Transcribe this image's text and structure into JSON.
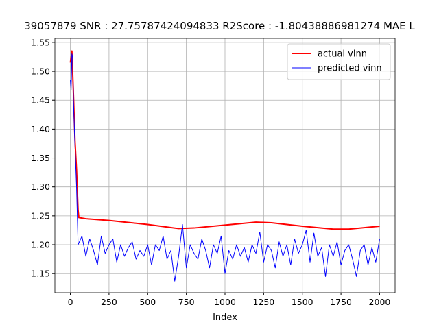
{
  "chart_data": {
    "type": "line",
    "title": "39057879  SNR : 27.75787424094833 R2Score : -1.80438886981274 MAE L",
    "xlabel": "Index",
    "xlim": [
      -100,
      2100
    ],
    "xticks": [
      0,
      250,
      500,
      750,
      1000,
      1250,
      1500,
      1750,
      2000
    ],
    "ylim": [
      1.117,
      1.557
    ],
    "yticks": [
      1.15,
      {
        "value": 1.2,
        "label": "1.20"
      },
      1.25,
      {
        "value": 1.3,
        "label": "1.30"
      },
      1.35,
      {
        "value": 1.4,
        "label": "1.40"
      },
      1.45,
      {
        "value": 1.5,
        "label": "1.50"
      },
      1.55
    ],
    "grid": true,
    "legend": "upper right",
    "series": [
      {
        "name": "actual vinn",
        "color": "#ff0000",
        "width": 2,
        "x": [
          0,
          10,
          20,
          30,
          40,
          50,
          55,
          100,
          250,
          500,
          700,
          800,
          1000,
          1200,
          1300,
          1500,
          1700,
          1800,
          2000
        ],
        "values": [
          1.515,
          1.535,
          1.46,
          1.38,
          1.33,
          1.26,
          1.247,
          1.245,
          1.242,
          1.235,
          1.228,
          1.229,
          1.234,
          1.239,
          1.238,
          1.232,
          1.227,
          1.227,
          1.232
        ]
      },
      {
        "name": "predicted vinn",
        "color": "#0000ff",
        "width": 1,
        "x": [
          0,
          5,
          10,
          15,
          20,
          30,
          40,
          50,
          75,
          100,
          125,
          150,
          175,
          200,
          225,
          250,
          275,
          300,
          325,
          350,
          375,
          400,
          425,
          450,
          475,
          500,
          525,
          550,
          575,
          600,
          625,
          650,
          675,
          700,
          725,
          750,
          775,
          800,
          825,
          850,
          875,
          900,
          925,
          950,
          975,
          1000,
          1025,
          1050,
          1075,
          1100,
          1125,
          1150,
          1175,
          1200,
          1225,
          1250,
          1275,
          1300,
          1325,
          1350,
          1375,
          1400,
          1425,
          1450,
          1475,
          1500,
          1525,
          1550,
          1575,
          1600,
          1625,
          1650,
          1675,
          1700,
          1725,
          1750,
          1775,
          1800,
          1825,
          1850,
          1875,
          1900,
          1925,
          1950,
          1975,
          2000
        ],
        "values": [
          1.485,
          1.468,
          1.53,
          1.525,
          1.45,
          1.37,
          1.3,
          1.2,
          1.215,
          1.18,
          1.21,
          1.19,
          1.165,
          1.215,
          1.185,
          1.2,
          1.21,
          1.17,
          1.2,
          1.18,
          1.195,
          1.205,
          1.175,
          1.19,
          1.18,
          1.2,
          1.165,
          1.2,
          1.19,
          1.215,
          1.175,
          1.19,
          1.137,
          1.18,
          1.235,
          1.16,
          1.2,
          1.185,
          1.175,
          1.21,
          1.19,
          1.16,
          1.2,
          1.185,
          1.215,
          1.15,
          1.19,
          1.175,
          1.2,
          1.18,
          1.195,
          1.17,
          1.2,
          1.185,
          1.222,
          1.17,
          1.2,
          1.19,
          1.16,
          1.205,
          1.18,
          1.2,
          1.165,
          1.21,
          1.185,
          1.2,
          1.225,
          1.17,
          1.22,
          1.18,
          1.195,
          1.145,
          1.2,
          1.18,
          1.205,
          1.165,
          1.19,
          1.2,
          1.175,
          1.145,
          1.19,
          1.2,
          1.165,
          1.195,
          1.17,
          1.21
        ]
      }
    ]
  }
}
